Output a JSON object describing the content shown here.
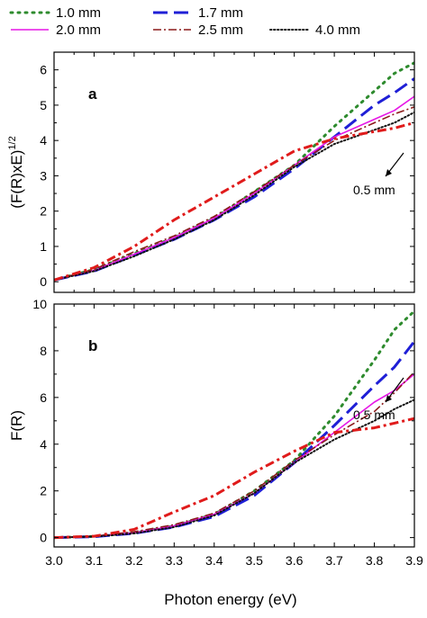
{
  "legend": [
    {
      "label": "1.0 mm",
      "color": "#2e8b2e",
      "dash": "dot-coarse"
    },
    {
      "label": "1.7 mm",
      "color": "#1f1fd6",
      "dash": "long-dash"
    },
    {
      "label": "2.0 mm",
      "color": "#e617e6",
      "dash": "solid"
    },
    {
      "label": "2.5 mm",
      "color": "#8b1a1a",
      "dash": "dash-dot"
    },
    {
      "label": "4.0 mm",
      "color": "#111111",
      "dash": "dot-fine"
    }
  ],
  "extra_series": {
    "label": "0.5 mm",
    "color": "#e01b1b",
    "dash": "dash-dot-bold"
  },
  "xlabel": "Photon energy (eV)",
  "chart_data": [
    {
      "type": "line",
      "panel_label": "a",
      "ylabel": "(F(R)xE)",
      "ylabel_sup": "1/2",
      "xlim": [
        3.0,
        3.9
      ],
      "ylim": [
        -0.3,
        6.5
      ],
      "xticks": [
        "3.0",
        "3.1",
        "3.2",
        "3.3",
        "3.4",
        "3.5",
        "3.6",
        "3.7",
        "3.8",
        "3.9"
      ],
      "yticks": [
        0,
        1,
        2,
        3,
        4,
        5,
        6
      ],
      "annotation": "0.5 mm",
      "series": [
        {
          "name": "1.0 mm",
          "x": [
            3.0,
            3.1,
            3.2,
            3.3,
            3.4,
            3.5,
            3.6,
            3.7,
            3.8,
            3.85,
            3.9
          ],
          "y": [
            0.05,
            0.35,
            0.8,
            1.25,
            1.8,
            2.55,
            3.3,
            4.4,
            5.4,
            5.9,
            6.2
          ]
        },
        {
          "name": "1.7 mm",
          "x": [
            3.0,
            3.1,
            3.2,
            3.3,
            3.4,
            3.5,
            3.6,
            3.7,
            3.8,
            3.85,
            3.9
          ],
          "y": [
            0.05,
            0.3,
            0.75,
            1.2,
            1.75,
            2.4,
            3.2,
            4.1,
            5.0,
            5.35,
            5.75
          ]
        },
        {
          "name": "2.0 mm",
          "x": [
            3.0,
            3.1,
            3.2,
            3.3,
            3.4,
            3.5,
            3.6,
            3.7,
            3.8,
            3.85,
            3.9
          ],
          "y": [
            0.05,
            0.32,
            0.78,
            1.25,
            1.8,
            2.5,
            3.3,
            4.1,
            4.6,
            4.85,
            5.25
          ]
        },
        {
          "name": "2.5 mm",
          "x": [
            3.0,
            3.1,
            3.2,
            3.3,
            3.4,
            3.5,
            3.6,
            3.7,
            3.8,
            3.85,
            3.9
          ],
          "y": [
            0.05,
            0.35,
            0.85,
            1.3,
            1.85,
            2.55,
            3.3,
            4.0,
            4.5,
            4.75,
            4.95
          ]
        },
        {
          "name": "4.0 mm",
          "x": [
            3.0,
            3.1,
            3.2,
            3.3,
            3.4,
            3.5,
            3.6,
            3.7,
            3.8,
            3.85,
            3.9
          ],
          "y": [
            0.05,
            0.3,
            0.72,
            1.2,
            1.75,
            2.45,
            3.25,
            3.9,
            4.3,
            4.5,
            4.8
          ]
        },
        {
          "name": "0.5 mm",
          "x": [
            3.0,
            3.1,
            3.2,
            3.3,
            3.4,
            3.5,
            3.6,
            3.7,
            3.8,
            3.85,
            3.9
          ],
          "y": [
            0.05,
            0.4,
            1.0,
            1.75,
            2.4,
            3.05,
            3.7,
            4.05,
            4.25,
            4.35,
            4.5
          ]
        }
      ]
    },
    {
      "type": "line",
      "panel_label": "b",
      "ylabel": "F(R)",
      "xlim": [
        3.0,
        3.9
      ],
      "ylim": [
        -0.4,
        10
      ],
      "xticks": [
        "3.0",
        "3.1",
        "3.2",
        "3.3",
        "3.4",
        "3.5",
        "3.6",
        "3.7",
        "3.8",
        "3.9"
      ],
      "yticks": [
        0,
        2,
        4,
        6,
        8,
        10
      ],
      "annotation": "0.5 mm",
      "series": [
        {
          "name": "1.0 mm",
          "x": [
            3.0,
            3.1,
            3.2,
            3.3,
            3.4,
            3.5,
            3.6,
            3.7,
            3.8,
            3.85,
            3.9
          ],
          "y": [
            0.0,
            0.05,
            0.2,
            0.5,
            1.0,
            2.0,
            3.3,
            5.2,
            7.6,
            8.9,
            9.7
          ]
        },
        {
          "name": "1.7 mm",
          "x": [
            3.0,
            3.1,
            3.2,
            3.3,
            3.4,
            3.5,
            3.6,
            3.7,
            3.8,
            3.85,
            3.9
          ],
          "y": [
            0.0,
            0.04,
            0.18,
            0.45,
            0.9,
            1.8,
            3.2,
            4.8,
            6.5,
            7.3,
            8.4
          ]
        },
        {
          "name": "2.0 mm",
          "x": [
            3.0,
            3.1,
            3.2,
            3.3,
            3.4,
            3.5,
            3.6,
            3.7,
            3.8,
            3.85,
            3.9
          ],
          "y": [
            0.0,
            0.05,
            0.2,
            0.5,
            1.0,
            1.9,
            3.2,
            4.5,
            5.8,
            6.3,
            7.0
          ]
        },
        {
          "name": "2.5 mm",
          "x": [
            3.0,
            3.1,
            3.2,
            3.3,
            3.4,
            3.5,
            3.6,
            3.7,
            3.8,
            3.85,
            3.9
          ],
          "y": [
            0.0,
            0.06,
            0.25,
            0.55,
            1.05,
            2.0,
            3.3,
            4.4,
            5.4,
            6.2,
            7.1
          ]
        },
        {
          "name": "4.0 mm",
          "x": [
            3.0,
            3.1,
            3.2,
            3.3,
            3.4,
            3.5,
            3.6,
            3.7,
            3.8,
            3.85,
            3.9
          ],
          "y": [
            0.0,
            0.04,
            0.18,
            0.45,
            0.95,
            1.9,
            3.2,
            4.2,
            5.0,
            5.5,
            5.9
          ]
        },
        {
          "name": "0.5 mm",
          "x": [
            3.0,
            3.1,
            3.2,
            3.3,
            3.4,
            3.5,
            3.6,
            3.7,
            3.8,
            3.85,
            3.9
          ],
          "y": [
            0.0,
            0.06,
            0.35,
            1.1,
            1.8,
            2.8,
            3.7,
            4.5,
            4.7,
            4.9,
            5.1
          ]
        }
      ]
    }
  ]
}
